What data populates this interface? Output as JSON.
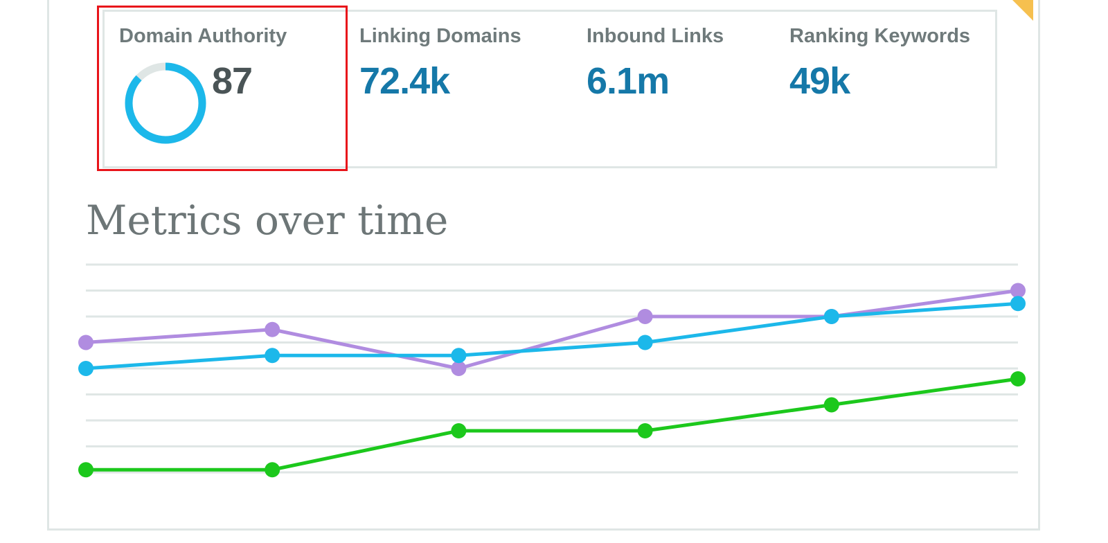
{
  "metrics": {
    "domain_authority": {
      "label": "Domain Authority",
      "value": "87",
      "progress": 0.87
    },
    "linking_domains": {
      "label": "Linking Domains",
      "value": "72.4k"
    },
    "inbound_links": {
      "label": "Inbound Links",
      "value": "6.1m"
    },
    "ranking_keywords": {
      "label": "Ranking Keywords",
      "value": "49k"
    }
  },
  "chart_section": {
    "title": "Metrics over time"
  },
  "colors": {
    "accent_ring": "#1cb8ea",
    "ring_track": "#dfe6e5",
    "metric_value": "#1578a8",
    "highlight": "#e8141a",
    "series_purple": "#b08ce0",
    "series_blue": "#1cb8ea",
    "series_green": "#1cc81c",
    "gridline": "#dfe6e5"
  },
  "chart_data": {
    "type": "line",
    "x": [
      1,
      2,
      3,
      4,
      5,
      6
    ],
    "ylim": [
      0,
      8
    ],
    "grid": true,
    "series": [
      {
        "color": "#b08ce0",
        "values": [
          5.0,
          5.5,
          4.0,
          6.0,
          6.0,
          7.0
        ]
      },
      {
        "color": "#1cb8ea",
        "values": [
          4.0,
          4.5,
          4.5,
          5.0,
          6.0,
          6.5
        ]
      },
      {
        "color": "#1cc81c",
        "values": [
          0.1,
          0.1,
          1.6,
          1.6,
          2.6,
          3.6
        ]
      }
    ]
  }
}
